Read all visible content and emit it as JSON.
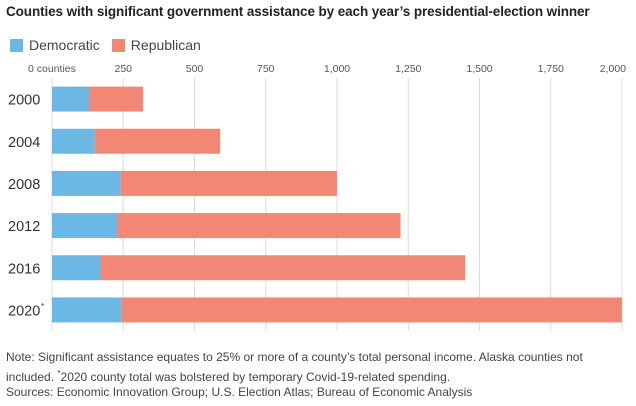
{
  "chart_data": {
    "type": "bar",
    "orientation": "horizontal",
    "stacked": true,
    "title": "Counties with significant government assistance by each year’s presidential-election winner",
    "categories": [
      "2000",
      "2004",
      "2008",
      "2012",
      "2016",
      "2020"
    ],
    "category_superscripts": [
      "",
      "",
      "",
      "",
      "",
      "*"
    ],
    "series": [
      {
        "name": "Democratic",
        "color": "#6cb8e4",
        "values": [
          130,
          150,
          240,
          228,
          170,
          243
        ]
      },
      {
        "name": "Republican",
        "color": "#f28775",
        "values": [
          190,
          440,
          760,
          995,
          1280,
          1757
        ]
      }
    ],
    "xlim": [
      0,
      2000
    ],
    "xticks": [
      0,
      250,
      500,
      750,
      1000,
      1250,
      1500,
      1750,
      2000
    ],
    "xtick_labels": [
      "0 counties",
      "250",
      "500",
      "750",
      "1,000",
      "1,250",
      "1,500",
      "1,750",
      "2,000"
    ],
    "grid": true,
    "legend_position": "top-left",
    "xlabel": "",
    "ylabel": ""
  },
  "notes": {
    "note_part1": "Note: Significant assistance equates to 25% or more of a county’s total personal income. Alaska counties not included.",
    "note_marker": "*",
    "note_part2": "2020 county total was bolstered by temporary Covid-19-related spending.",
    "sources": "Sources: Economic Innovation Group; U.S. Election Atlas; Bureau of Economic Analysis"
  }
}
